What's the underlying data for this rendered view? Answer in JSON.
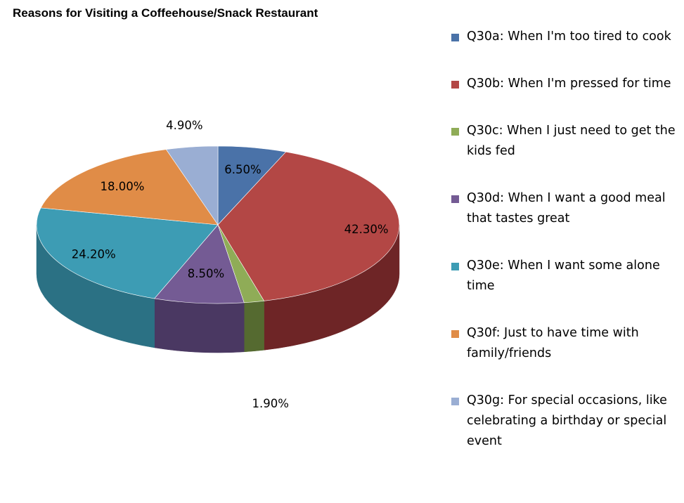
{
  "chart_data": {
    "type": "pie",
    "title": "Reasons for Visiting a Coffeehouse/Snack Restaurant",
    "slices": [
      {
        "name": "Q30a: When I'm too  tired to cook",
        "value": 6.5,
        "label": "6.50%",
        "color": "#4a72a8",
        "side": "#2e4a72"
      },
      {
        "name": "Q30b: When I'm pressed for time",
        "value": 42.3,
        "label": "42.30%",
        "color": "#b34745",
        "side": "#6e2526"
      },
      {
        "name": "Q30c: When I just need to get the kids fed",
        "value": 1.9,
        "label": "1.90%",
        "color": "#8fac57",
        "side": "#556a30"
      },
      {
        "name": "Q30d: When I want a good meal that tastes great",
        "value": 8.5,
        "label": "8.50%",
        "color": "#745b94",
        "side": "#4a3862"
      },
      {
        "name": "Q30e: When I want some alone time",
        "value": 24.2,
        "label": "24.20%",
        "color": "#3d9cb4",
        "side": "#2b7184"
      },
      {
        "name": "Q30f: Just to have time with family/friends",
        "value": 18.0,
        "label": "18.00%",
        "color": "#e08c47",
        "side": "#a86228"
      },
      {
        "name": "Q30g: For special occasions, like celebrating a birthday or special event",
        "value": 4.9,
        "label": "4.90%",
        "color": "#9aaed3",
        "side": "#6d7e9e"
      }
    ],
    "legend_position": "right"
  }
}
